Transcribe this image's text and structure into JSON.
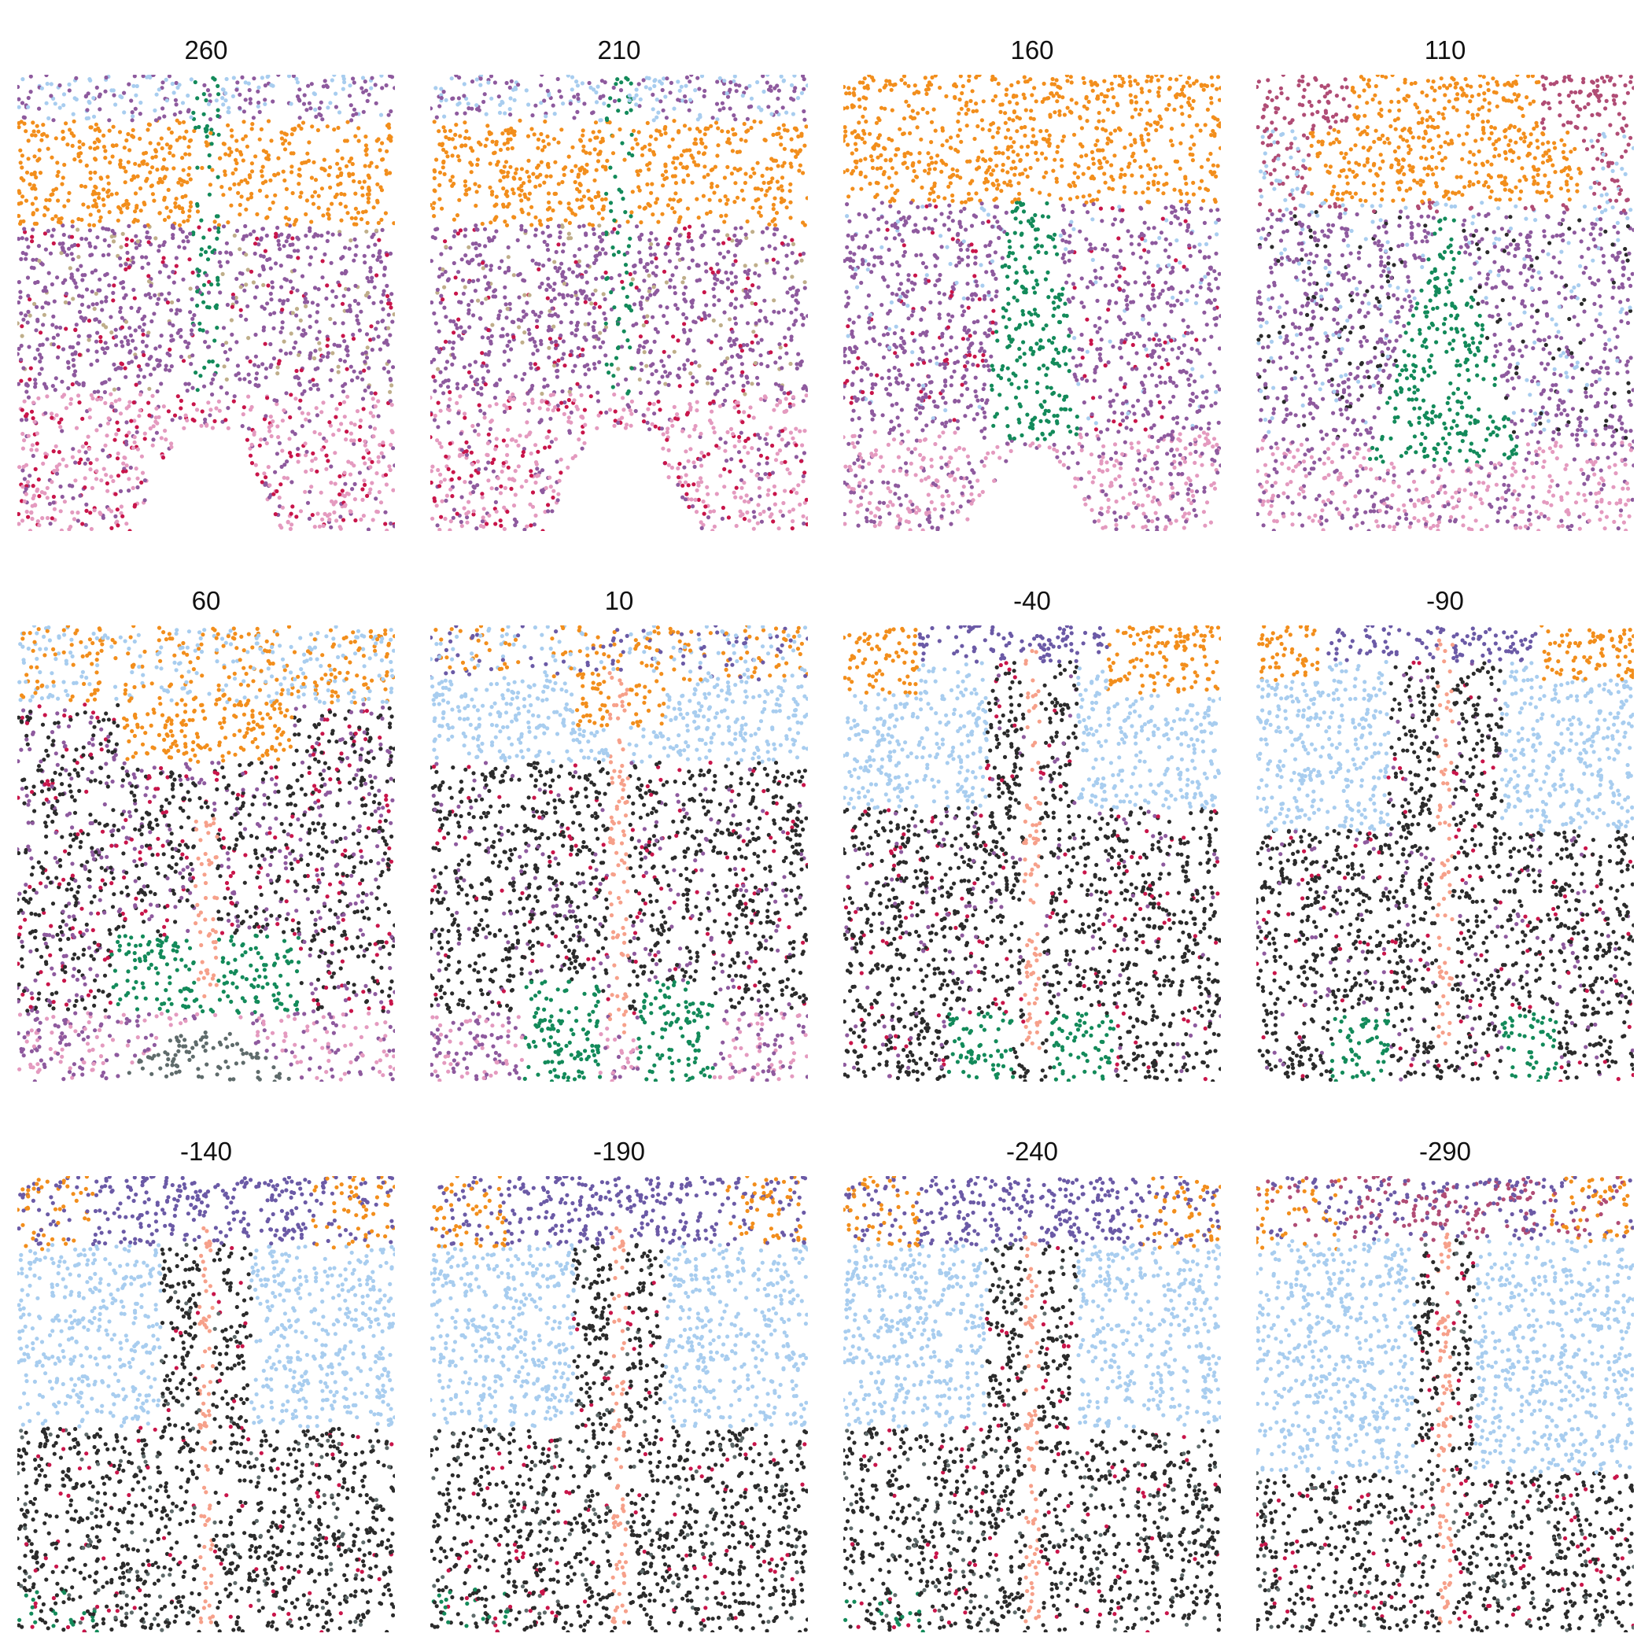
{
  "chart_data": {
    "type": "scatter",
    "description_layout": "3x4 small multiples of spatial cell-type scatter maps",
    "axes_visible": false,
    "grid": false,
    "legend": "none",
    "palette": {
      "orange": "#f28e1c",
      "purple": "#8e5a9e",
      "darkpurple": "#6b5aa6",
      "lightblue": "#a8cdef",
      "pink": "#e49abf",
      "green": "#138a5a",
      "salmon": "#f6a08a",
      "black": "#2b2b2b",
      "gray": "#5f6b6b",
      "crimson": "#c8154a",
      "magenta": "#b04c75",
      "blue": "#1f6fb0",
      "tan": "#bfae8a"
    },
    "panels": [
      {
        "label": "260",
        "scheme": "A"
      },
      {
        "label": "210",
        "scheme": "A"
      },
      {
        "label": "160",
        "scheme": "B"
      },
      {
        "label": "110",
        "scheme": "C"
      },
      {
        "label": "60",
        "scheme": "D"
      },
      {
        "label": "10",
        "scheme": "E"
      },
      {
        "label": "-40",
        "scheme": "F"
      },
      {
        "label": "-90",
        "scheme": "G"
      },
      {
        "label": "-140",
        "scheme": "H"
      },
      {
        "label": "-190",
        "scheme": "H"
      },
      {
        "label": "-240",
        "scheme": "H"
      },
      {
        "label": "-290",
        "scheme": "I"
      }
    ]
  }
}
